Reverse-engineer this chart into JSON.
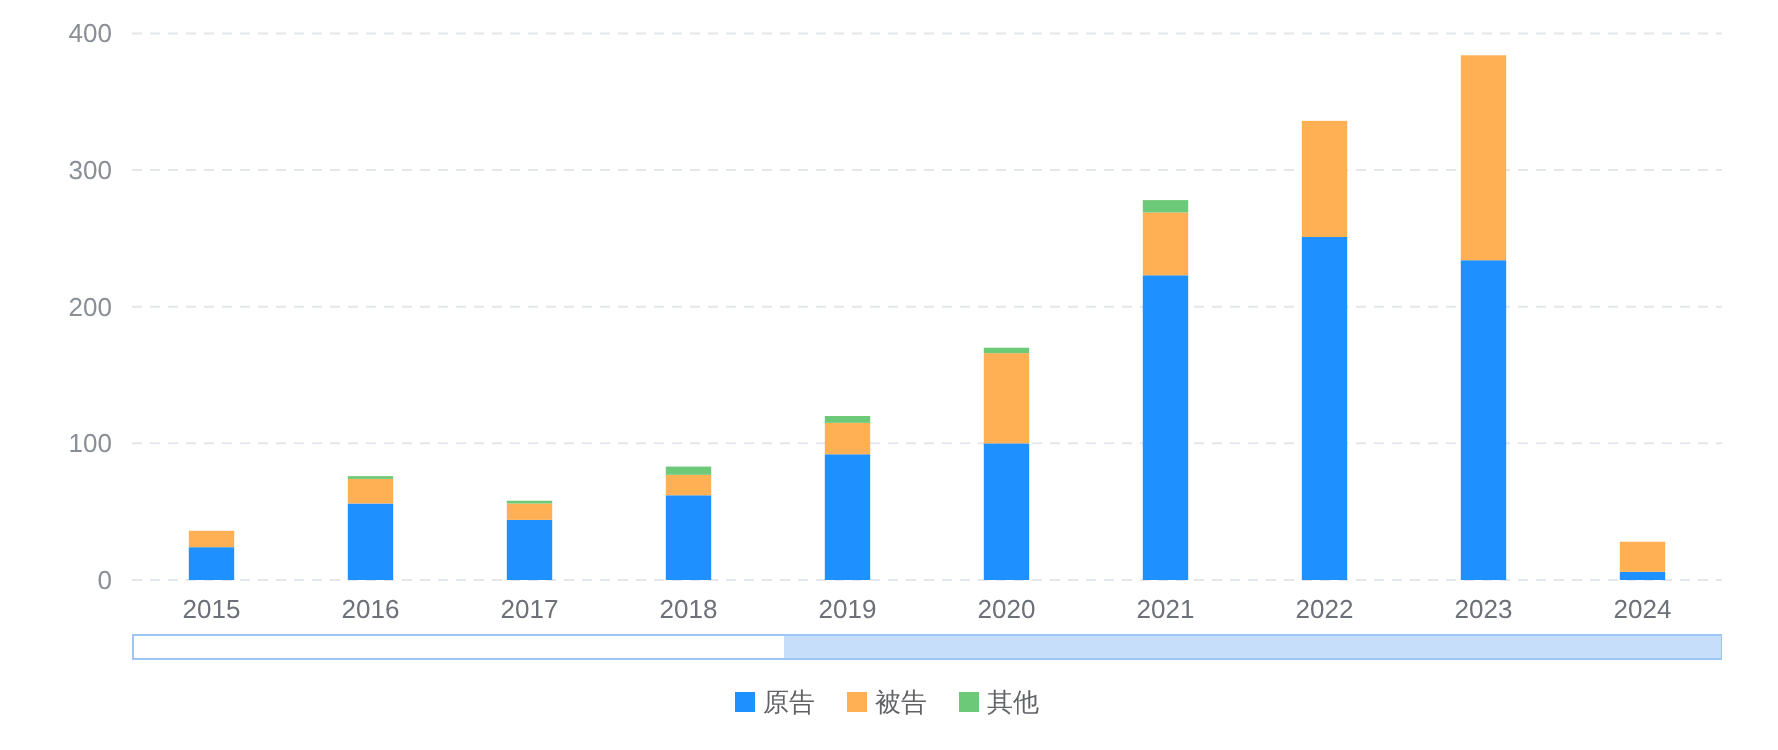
{
  "chart_data": {
    "type": "bar",
    "stacked": true,
    "categories": [
      "2015",
      "2016",
      "2017",
      "2018",
      "2019",
      "2020",
      "2021",
      "2022",
      "2023",
      "2024"
    ],
    "series": [
      {
        "name": "原告",
        "color": "#1e90ff",
        "values": [
          24,
          56,
          44,
          62,
          92,
          100,
          223,
          251,
          234,
          6
        ]
      },
      {
        "name": "被告",
        "color": "#ffb055",
        "values": [
          12,
          18,
          12,
          15,
          23,
          66,
          46,
          85,
          150,
          22
        ]
      },
      {
        "name": "其他",
        "color": "#6cc977",
        "values": [
          0,
          2,
          2,
          6,
          5,
          4,
          9,
          0,
          0,
          0
        ]
      }
    ],
    "ylim": [
      0,
      400
    ],
    "yticks": [
      0,
      100,
      200,
      300,
      400
    ],
    "grid": "y",
    "legend": "bottom"
  }
}
